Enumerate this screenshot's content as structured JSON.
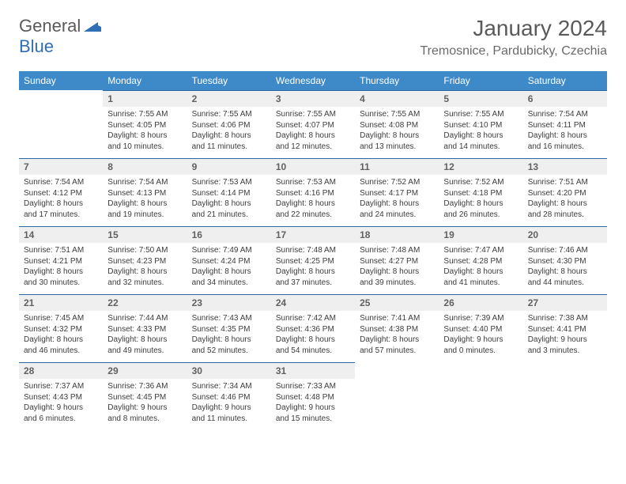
{
  "logo": {
    "part1": "General",
    "part2": "Blue"
  },
  "header": {
    "title": "January 2024",
    "location": "Tremosnice, Pardubicky, Czechia"
  },
  "colors": {
    "header_bg": "#3e8ac9",
    "header_border": "#2968a4",
    "daynum_bg": "#efefef",
    "logo_blue": "#2f6fb5",
    "text": "#3c3c3c"
  },
  "weekdays": [
    "Sunday",
    "Monday",
    "Tuesday",
    "Wednesday",
    "Thursday",
    "Friday",
    "Saturday"
  ],
  "weeks": [
    [
      null,
      {
        "n": "1",
        "sr": "7:55 AM",
        "ss": "4:05 PM",
        "dh": 8,
        "dm": 10
      },
      {
        "n": "2",
        "sr": "7:55 AM",
        "ss": "4:06 PM",
        "dh": 8,
        "dm": 11
      },
      {
        "n": "3",
        "sr": "7:55 AM",
        "ss": "4:07 PM",
        "dh": 8,
        "dm": 12
      },
      {
        "n": "4",
        "sr": "7:55 AM",
        "ss": "4:08 PM",
        "dh": 8,
        "dm": 13
      },
      {
        "n": "5",
        "sr": "7:55 AM",
        "ss": "4:10 PM",
        "dh": 8,
        "dm": 14
      },
      {
        "n": "6",
        "sr": "7:54 AM",
        "ss": "4:11 PM",
        "dh": 8,
        "dm": 16
      }
    ],
    [
      {
        "n": "7",
        "sr": "7:54 AM",
        "ss": "4:12 PM",
        "dh": 8,
        "dm": 17
      },
      {
        "n": "8",
        "sr": "7:54 AM",
        "ss": "4:13 PM",
        "dh": 8,
        "dm": 19
      },
      {
        "n": "9",
        "sr": "7:53 AM",
        "ss": "4:14 PM",
        "dh": 8,
        "dm": 21
      },
      {
        "n": "10",
        "sr": "7:53 AM",
        "ss": "4:16 PM",
        "dh": 8,
        "dm": 22
      },
      {
        "n": "11",
        "sr": "7:52 AM",
        "ss": "4:17 PM",
        "dh": 8,
        "dm": 24
      },
      {
        "n": "12",
        "sr": "7:52 AM",
        "ss": "4:18 PM",
        "dh": 8,
        "dm": 26
      },
      {
        "n": "13",
        "sr": "7:51 AM",
        "ss": "4:20 PM",
        "dh": 8,
        "dm": 28
      }
    ],
    [
      {
        "n": "14",
        "sr": "7:51 AM",
        "ss": "4:21 PM",
        "dh": 8,
        "dm": 30
      },
      {
        "n": "15",
        "sr": "7:50 AM",
        "ss": "4:23 PM",
        "dh": 8,
        "dm": 32
      },
      {
        "n": "16",
        "sr": "7:49 AM",
        "ss": "4:24 PM",
        "dh": 8,
        "dm": 34
      },
      {
        "n": "17",
        "sr": "7:48 AM",
        "ss": "4:25 PM",
        "dh": 8,
        "dm": 37
      },
      {
        "n": "18",
        "sr": "7:48 AM",
        "ss": "4:27 PM",
        "dh": 8,
        "dm": 39
      },
      {
        "n": "19",
        "sr": "7:47 AM",
        "ss": "4:28 PM",
        "dh": 8,
        "dm": 41
      },
      {
        "n": "20",
        "sr": "7:46 AM",
        "ss": "4:30 PM",
        "dh": 8,
        "dm": 44
      }
    ],
    [
      {
        "n": "21",
        "sr": "7:45 AM",
        "ss": "4:32 PM",
        "dh": 8,
        "dm": 46
      },
      {
        "n": "22",
        "sr": "7:44 AM",
        "ss": "4:33 PM",
        "dh": 8,
        "dm": 49
      },
      {
        "n": "23",
        "sr": "7:43 AM",
        "ss": "4:35 PM",
        "dh": 8,
        "dm": 52
      },
      {
        "n": "24",
        "sr": "7:42 AM",
        "ss": "4:36 PM",
        "dh": 8,
        "dm": 54
      },
      {
        "n": "25",
        "sr": "7:41 AM",
        "ss": "4:38 PM",
        "dh": 8,
        "dm": 57
      },
      {
        "n": "26",
        "sr": "7:39 AM",
        "ss": "4:40 PM",
        "dh": 9,
        "dm": 0
      },
      {
        "n": "27",
        "sr": "7:38 AM",
        "ss": "4:41 PM",
        "dh": 9,
        "dm": 3
      }
    ],
    [
      {
        "n": "28",
        "sr": "7:37 AM",
        "ss": "4:43 PM",
        "dh": 9,
        "dm": 6
      },
      {
        "n": "29",
        "sr": "7:36 AM",
        "ss": "4:45 PM",
        "dh": 9,
        "dm": 8
      },
      {
        "n": "30",
        "sr": "7:34 AM",
        "ss": "4:46 PM",
        "dh": 9,
        "dm": 11
      },
      {
        "n": "31",
        "sr": "7:33 AM",
        "ss": "4:48 PM",
        "dh": 9,
        "dm": 15
      },
      null,
      null,
      null
    ]
  ]
}
